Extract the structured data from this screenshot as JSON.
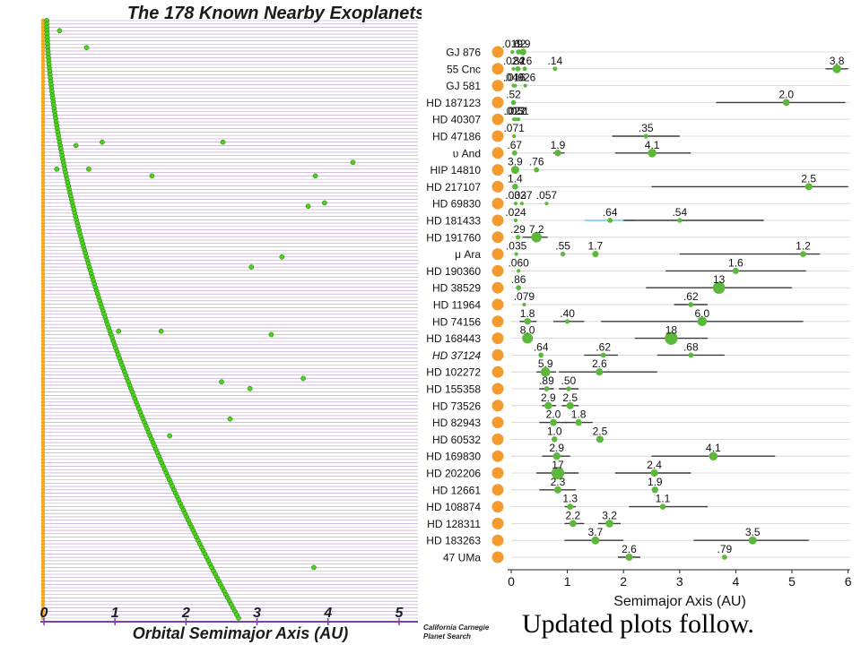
{
  "left_chart": {
    "title": "The 178 Known Nearby Exoplanets",
    "xlabel": "Orbital Semimajor Axis  (AU)",
    "x_ticks": [
      "0",
      "1",
      "2",
      "3",
      "4",
      "5"
    ],
    "xlim": [
      0,
      5.2
    ],
    "star_count": 178,
    "colors": {
      "axis": "#7a3fb0",
      "line": "#b79cc9",
      "star": "#f2a81a",
      "planet": "#4cd21c",
      "label": "#111111"
    }
  },
  "credit": [
    "California Carnegie",
    "Planet Search"
  ],
  "footer_note": "Updated plots follow.",
  "chart_data": {
    "type": "scatter",
    "xlabel": "Semimajor Axis (AU)",
    "xlim": [
      0,
      6
    ],
    "x_ticks": [
      0,
      1,
      2,
      3,
      4,
      5,
      6
    ],
    "colors": {
      "star": "#f39b2e",
      "planet": "#5cb83a",
      "error_bar": "#3a3a3a",
      "error_bar_highlight": "#6ec6f2",
      "row_line": "#d0d0d0",
      "axis": "#222222"
    },
    "systems": [
      {
        "name": "GJ 876",
        "planets": [
          {
            "a": 0.02,
            "mass_label": ".019",
            "size": 0.5
          },
          {
            "a": 0.13,
            "mass_label": ".62",
            "size": 1.0
          },
          {
            "a": 0.21,
            "mass_label": "1.9",
            "size": 1.5
          }
        ]
      },
      {
        "name": "55 Cnc",
        "planets": [
          {
            "a": 0.04,
            "mass_label": ".024",
            "size": 0.5
          },
          {
            "a": 0.12,
            "mass_label": ".82",
            "size": 1.0
          },
          {
            "a": 0.24,
            "mass_label": ".16",
            "size": 0.7
          },
          {
            "a": 0.78,
            "mass_label": ".14",
            "size": 0.7
          },
          {
            "a": 5.8,
            "mass_label": "3.8",
            "size": 2.2,
            "err": [
              5.6,
              6.0
            ]
          }
        ]
      },
      {
        "name": "GJ 581",
        "planets": [
          {
            "a": 0.04,
            "mass_label": ".049",
            "size": 0.5
          },
          {
            "a": 0.07,
            "mass_label": ".016",
            "size": 0.5
          },
          {
            "a": 0.25,
            "mass_label": ".026",
            "size": 0.5
          }
        ]
      },
      {
        "name": "HD 187123",
        "planets": [
          {
            "a": 0.04,
            "mass_label": ".52",
            "size": 0.9
          },
          {
            "a": 4.9,
            "mass_label": "2.0",
            "size": 1.6,
            "err": [
              3.65,
              5.95
            ]
          }
        ]
      },
      {
        "name": "HD 40307",
        "planets": [
          {
            "a": 0.05,
            "mass_label": ".013",
            "size": 0.5
          },
          {
            "a": 0.08,
            "mass_label": ".022",
            "size": 0.5
          },
          {
            "a": 0.13,
            "mass_label": ".051",
            "size": 0.5
          }
        ]
      },
      {
        "name": "HD 47186",
        "planets": [
          {
            "a": 0.05,
            "mass_label": ".071",
            "size": 0.5
          },
          {
            "a": 2.4,
            "mass_label": ".35",
            "size": 0.8,
            "err": [
              1.8,
              3.0
            ]
          }
        ]
      },
      {
        "name": "υ And",
        "planets": [
          {
            "a": 0.06,
            "mass_label": ".67",
            "size": 1.0
          },
          {
            "a": 0.83,
            "mass_label": "1.9",
            "size": 1.5,
            "err": [
              0.75,
              0.95
            ]
          },
          {
            "a": 2.51,
            "mass_label": "4.1",
            "size": 2.2,
            "err": [
              1.85,
              3.2
            ]
          }
        ]
      },
      {
        "name": "HIP 14810",
        "planets": [
          {
            "a": 0.07,
            "mass_label": "3.9",
            "size": 2.0
          },
          {
            "a": 0.45,
            "mass_label": ".76",
            "size": 1.0
          }
        ]
      },
      {
        "name": "HD 217107",
        "planets": [
          {
            "a": 0.07,
            "mass_label": "1.4",
            "size": 1.3
          },
          {
            "a": 5.3,
            "mass_label": "2.5",
            "size": 1.7,
            "err": [
              2.5,
              6.0
            ]
          }
        ]
      },
      {
        "name": "HD 69830",
        "planets": [
          {
            "a": 0.08,
            "mass_label": ".032",
            "size": 0.5
          },
          {
            "a": 0.19,
            "mass_label": ".037",
            "size": 0.5
          },
          {
            "a": 0.63,
            "mass_label": ".057",
            "size": 0.5
          }
        ]
      },
      {
        "name": "HD 181433",
        "planets": [
          {
            "a": 0.08,
            "mass_label": ".024",
            "size": 0.5
          },
          {
            "a": 1.76,
            "mass_label": ".64",
            "size": 1.0,
            "err": [
              1.3,
              2.2
            ],
            "highlight": true
          },
          {
            "a": 3.0,
            "mass_label": ".54",
            "size": 0.9,
            "err": [
              2.0,
              4.5
            ]
          }
        ]
      },
      {
        "name": "HD 191760",
        "planets": [
          {
            "a": 0.12,
            "mass_label": ".29",
            "size": 0.8
          },
          {
            "a": 0.45,
            "mass_label": "7.2",
            "size": 2.8,
            "err": [
              0.2,
              0.65
            ]
          }
        ]
      },
      {
        "name": "μ Ara",
        "planets": [
          {
            "a": 0.09,
            "mass_label": ".035",
            "size": 0.5
          },
          {
            "a": 0.92,
            "mass_label": ".55",
            "size": 0.9
          },
          {
            "a": 1.5,
            "mass_label": "1.7",
            "size": 1.4
          },
          {
            "a": 5.2,
            "mass_label": "1.2",
            "size": 1.3,
            "err": [
              3.0,
              5.5
            ]
          }
        ]
      },
      {
        "name": "HD 190360",
        "planets": [
          {
            "a": 0.13,
            "mass_label": ".060",
            "size": 0.5
          },
          {
            "a": 4.0,
            "mass_label": "1.6",
            "size": 1.4,
            "err": [
              2.75,
              5.25
            ]
          }
        ]
      },
      {
        "name": "HD 38529",
        "planets": [
          {
            "a": 0.13,
            "mass_label": ".86",
            "size": 1.0
          },
          {
            "a": 3.7,
            "mass_label": "13",
            "size": 3.4,
            "err": [
              2.4,
              5.0
            ]
          }
        ]
      },
      {
        "name": "HD 11964",
        "planets": [
          {
            "a": 0.23,
            "mass_label": ".079",
            "size": 0.5
          },
          {
            "a": 3.2,
            "mass_label": ".62",
            "size": 1.0,
            "err": [
              2.9,
              3.5
            ]
          }
        ]
      },
      {
        "name": "HD 74156",
        "planets": [
          {
            "a": 0.29,
            "mass_label": "1.8",
            "size": 1.5,
            "err": [
              0.15,
              0.45
            ]
          },
          {
            "a": 1.0,
            "mass_label": ".40",
            "size": 0.8,
            "err": [
              0.75,
              1.3
            ]
          },
          {
            "a": 3.4,
            "mass_label": "6.0",
            "size": 2.5,
            "err": [
              1.6,
              5.2
            ]
          }
        ]
      },
      {
        "name": "HD 168443",
        "planets": [
          {
            "a": 0.29,
            "mass_label": "8.0",
            "size": 2.9
          },
          {
            "a": 2.85,
            "mass_label": "18",
            "size": 3.7,
            "err": [
              2.2,
              3.5
            ]
          }
        ]
      },
      {
        "name": "HD 37124",
        "italic": true,
        "planets": [
          {
            "a": 0.53,
            "mass_label": ".64",
            "size": 1.0
          },
          {
            "a": 1.64,
            "mass_label": ".62",
            "size": 1.0,
            "err": [
              1.3,
              1.9
            ]
          },
          {
            "a": 3.2,
            "mass_label": ".68",
            "size": 1.0,
            "err": [
              2.6,
              3.8
            ]
          }
        ]
      },
      {
        "name": "HD 102272",
        "planets": [
          {
            "a": 0.61,
            "mass_label": "5.9",
            "size": 2.5,
            "err": [
              0.45,
              0.8
            ]
          },
          {
            "a": 1.57,
            "mass_label": "2.6",
            "size": 1.7,
            "err": [
              0.85,
              2.6
            ]
          }
        ]
      },
      {
        "name": "HD 155358",
        "planets": [
          {
            "a": 0.63,
            "mass_label": ".89",
            "size": 1.0,
            "err": [
              0.5,
              0.76
            ]
          },
          {
            "a": 1.02,
            "mass_label": ".50",
            "size": 0.9,
            "err": [
              0.85,
              1.2
            ]
          }
        ]
      },
      {
        "name": "HD 73526",
        "planets": [
          {
            "a": 0.66,
            "mass_label": "2.9",
            "size": 1.8,
            "err": [
              0.55,
              0.8
            ]
          },
          {
            "a": 1.05,
            "mass_label": "2.5",
            "size": 1.7,
            "err": [
              0.9,
              1.2
            ]
          }
        ]
      },
      {
        "name": "HD 82943",
        "planets": [
          {
            "a": 0.75,
            "mass_label": "2.0",
            "size": 1.6,
            "err": [
              0.5,
              1.0
            ]
          },
          {
            "a": 1.2,
            "mass_label": "1.8",
            "size": 1.5,
            "err": [
              0.95,
              1.45
            ]
          }
        ]
      },
      {
        "name": "HD 60532",
        "planets": [
          {
            "a": 0.77,
            "mass_label": "1.0",
            "size": 1.2
          },
          {
            "a": 1.58,
            "mass_label": "2.5",
            "size": 1.7
          }
        ]
      },
      {
        "name": "HD 169830",
        "planets": [
          {
            "a": 0.81,
            "mass_label": "2.9",
            "size": 1.8,
            "err": [
              0.55,
              1.05
            ]
          },
          {
            "a": 3.6,
            "mass_label": "4.1",
            "size": 2.2,
            "err": [
              2.5,
              4.7
            ]
          }
        ]
      },
      {
        "name": "HD 202206",
        "planets": [
          {
            "a": 0.83,
            "mass_label": "17",
            "size": 3.6,
            "err": [
              0.45,
              1.2
            ]
          },
          {
            "a": 2.55,
            "mass_label": "2.4",
            "size": 1.7,
            "err": [
              1.85,
              3.2
            ]
          }
        ]
      },
      {
        "name": "HD 12661",
        "planets": [
          {
            "a": 0.83,
            "mass_label": "2.3",
            "size": 1.7,
            "err": [
              0.5,
              1.15
            ]
          },
          {
            "a": 2.56,
            "mass_label": "1.9",
            "size": 1.5
          }
        ]
      },
      {
        "name": "HD 108874",
        "planets": [
          {
            "a": 1.05,
            "mass_label": "1.3",
            "size": 1.3,
            "err": [
              0.95,
              1.15
            ]
          },
          {
            "a": 2.7,
            "mass_label": "1.1",
            "size": 1.2,
            "err": [
              2.1,
              3.5
            ]
          }
        ]
      },
      {
        "name": "HD 128311",
        "planets": [
          {
            "a": 1.1,
            "mass_label": "2.2",
            "size": 1.6,
            "err": [
              0.95,
              1.3
            ]
          },
          {
            "a": 1.75,
            "mass_label": "3.2",
            "size": 1.9,
            "err": [
              1.55,
              1.95
            ]
          }
        ]
      },
      {
        "name": "HD 183263",
        "planets": [
          {
            "a": 1.5,
            "mass_label": "3.7",
            "size": 2.0,
            "err": [
              0.95,
              2.0
            ]
          },
          {
            "a": 4.3,
            "mass_label": "3.5",
            "size": 2.0,
            "err": [
              3.25,
              5.3
            ]
          }
        ]
      },
      {
        "name": "47 UMa",
        "planets": [
          {
            "a": 2.1,
            "mass_label": "2.6",
            "size": 1.7,
            "err": [
              1.9,
              2.3
            ]
          },
          {
            "a": 3.8,
            "mass_label": ".79",
            "size": 1.0
          }
        ]
      }
    ]
  }
}
